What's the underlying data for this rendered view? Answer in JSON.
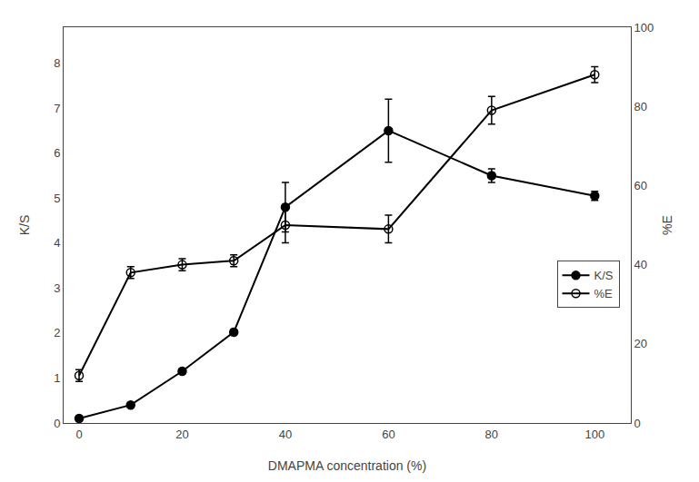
{
  "chart_data": {
    "type": "line",
    "xlabel": "DMAPMA concentration (%)",
    "ylabel": "K/S",
    "y2label": "%E",
    "x": [
      0,
      10,
      20,
      30,
      40,
      60,
      80,
      100
    ],
    "series": [
      {
        "name": "K/S",
        "color": "#000000",
        "marker": "circle",
        "values": [
          0.1,
          0.4,
          1.15,
          2.02,
          4.8,
          6.5,
          5.5,
          5.05
        ],
        "yerr": [
          0.05,
          0.05,
          0.05,
          0.05,
          0.55,
          0.7,
          0.15,
          0.1
        ]
      },
      {
        "name": "%E",
        "color": "#000000",
        "marker": "circle-open",
        "axis": "y2",
        "values": [
          12,
          38,
          40,
          41,
          50,
          49,
          79,
          88
        ],
        "yerr": [
          1.5,
          1.5,
          1.5,
          1.5,
          4.5,
          3.5,
          3.5,
          2.0
        ]
      }
    ],
    "xlim": [
      -3,
      107
    ],
    "xticks": [
      0,
      20,
      40,
      60,
      80,
      100
    ],
    "ylim": [
      0,
      8.8
    ],
    "yticks": [
      0,
      1,
      2,
      3,
      4,
      5,
      6,
      7,
      8
    ],
    "y2lim": [
      0,
      100
    ],
    "y2ticks": [
      0,
      20,
      40,
      60,
      80,
      100
    ],
    "grid": false,
    "legend": "right"
  }
}
